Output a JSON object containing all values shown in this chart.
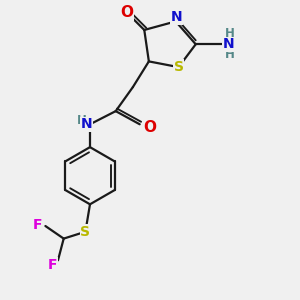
{
  "bg_color": "#f0f0f0",
  "bond_color": "#1a1a1a",
  "bond_lw": 1.6,
  "dbo": 0.05,
  "atom_colors": {
    "O": "#dd0000",
    "N": "#1010cc",
    "S": "#b8b800",
    "F": "#dd00dd",
    "H": "#558888",
    "C": "#1a1a1a"
  },
  "font_size": 10,
  "fig_size": [
    3.0,
    3.0
  ],
  "dpi": 100,
  "xlim": [
    -1.8,
    2.6
  ],
  "ylim": [
    -2.8,
    2.4
  ]
}
